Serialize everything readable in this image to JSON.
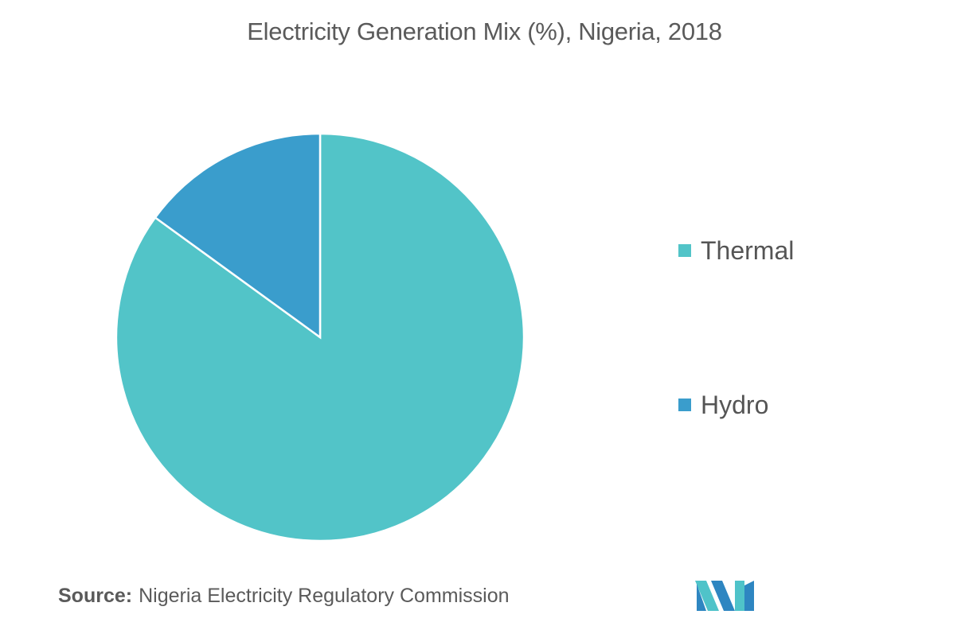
{
  "title": "Electricity Generation Mix (%), Nigeria, 2018",
  "source": {
    "label": "Source:",
    "text": "Nigeria Electricity Regulatory Commission"
  },
  "logo": {
    "icon": "mordor-logo-icon",
    "color_primary": "#2e86c1",
    "color_secondary": "#4fc3c9"
  },
  "chart_data": {
    "type": "pie",
    "title": "Electricity Generation Mix (%), Nigeria, 2018",
    "categories": [
      "Thermal",
      "Hydro"
    ],
    "values": [
      85,
      15
    ],
    "colors": [
      "#52c4c8",
      "#3a9dcc"
    ],
    "start_angle_deg": 0,
    "direction": "clockwise",
    "legend_placement": "right"
  }
}
